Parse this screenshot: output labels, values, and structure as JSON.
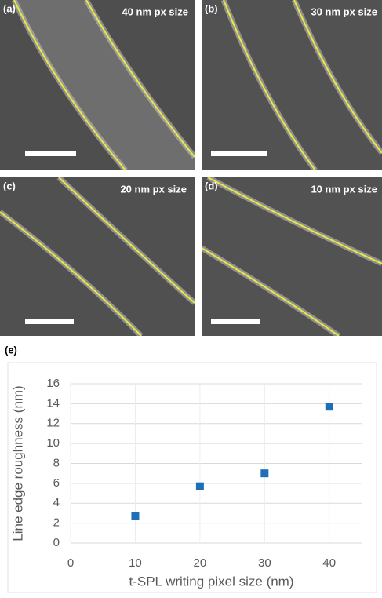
{
  "panels": [
    {
      "label": "(a)",
      "caption": "40 nm px size"
    },
    {
      "label": "(b)",
      "caption": "30 nm px size"
    },
    {
      "label": "(c)",
      "caption": "20 nm px size"
    },
    {
      "label": "(d)",
      "caption": "10 nm px size"
    }
  ],
  "chart_label": "(e)",
  "chart_data": {
    "type": "scatter",
    "x_label": "t-SPL writing pixel size (nm)",
    "y_label": "Line edge roughness (nm)",
    "x": [
      10,
      20,
      30,
      40
    ],
    "values": [
      2.7,
      5.7,
      7.0,
      13.7
    ],
    "color": "#1f6fb8",
    "xlim": [
      0,
      45
    ],
    "xticks": [
      0,
      10,
      20,
      30,
      40
    ],
    "ylim": [
      0,
      16
    ],
    "yticks": [
      0,
      2,
      4,
      6,
      8,
      10,
      12,
      14,
      16
    ],
    "grid": true
  }
}
